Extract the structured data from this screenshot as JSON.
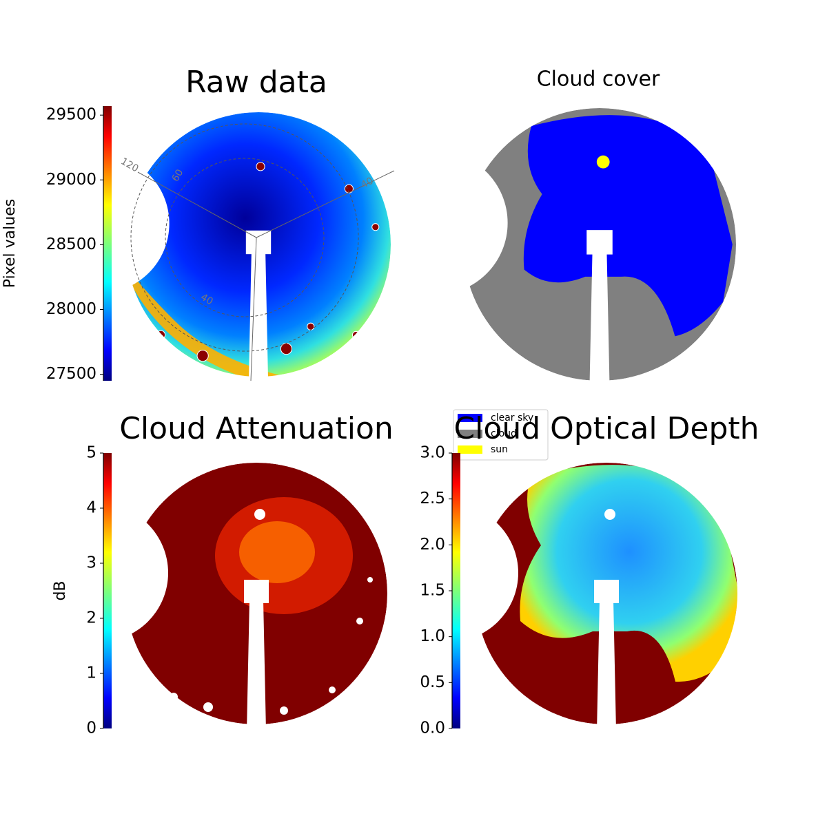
{
  "chart_data": [
    {
      "type": "image",
      "title": "Raw data",
      "colorbar": {
        "label": "Pixel values",
        "colormap": "jet",
        "lim": [
          27450,
          29570
        ],
        "ticks": [
          27500,
          28000,
          28500,
          29000,
          29500
        ]
      },
      "annotations": [
        "120",
        "60",
        "40",
        "40"
      ]
    },
    {
      "type": "image",
      "title": "Cloud cover",
      "legend": [
        {
          "name": "clear sky",
          "color": "#0000ff"
        },
        {
          "name": "cloud",
          "color": "#808080"
        },
        {
          "name": "sun",
          "color": "#ffff00"
        }
      ]
    },
    {
      "type": "image",
      "title": "Cloud Attenuation",
      "colorbar": {
        "label": "dB",
        "colormap": "jet",
        "lim": [
          0,
          5
        ],
        "ticks": [
          0,
          1,
          2,
          3,
          4,
          5
        ]
      }
    },
    {
      "type": "image",
      "title": "Cloud Optical Depth",
      "colorbar": {
        "colormap": "jet",
        "lim": [
          0,
          3
        ],
        "ticks": [
          {
            "value": 0,
            "label": "0.0"
          },
          {
            "value": 0.5,
            "label": "0.5"
          },
          {
            "value": 1,
            "label": "1.0"
          },
          {
            "value": 1.5,
            "label": "1.5"
          },
          {
            "value": 2,
            "label": "2.0"
          },
          {
            "value": 2.5,
            "label": "2.5"
          },
          {
            "value": 3,
            "label": "3.0"
          }
        ]
      }
    }
  ]
}
